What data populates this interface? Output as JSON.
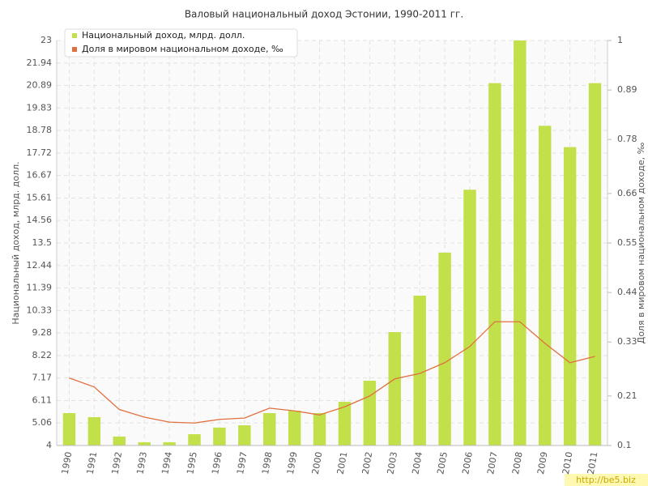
{
  "chart_data": {
    "type": "bar-line",
    "title": "Валовый национальный доход Эстонии, 1990-2011 гг.",
    "y_label": "Национальный доход, млрд. долл.",
    "y2_label": "Доля в мировом национальном доходе, ‰",
    "watermark": "http://be5.biz",
    "categories": [
      "1990",
      "1991",
      "1992",
      "1993",
      "1994",
      "1995",
      "1996",
      "1997",
      "1998",
      "1999",
      "2000",
      "2001",
      "2002",
      "2003",
      "2004",
      "2005",
      "2006",
      "2007",
      "2008",
      "2009",
      "2010",
      "2011"
    ],
    "series": [
      {
        "name": "Национальный доход, млрд. долл.",
        "type": "bar",
        "color": "#c2e04a",
        "values": [
          5.52,
          5.33,
          4.42,
          4.15,
          4.15,
          4.53,
          4.84,
          4.95,
          5.52,
          5.63,
          5.52,
          6.05,
          7.04,
          9.32,
          11.03,
          13.05,
          16.0,
          21.0,
          23,
          19.0,
          18.0,
          21.0
        ]
      },
      {
        "name": "Доля в мировом национальном доходе, ‰",
        "type": "line",
        "axis": "y2",
        "color": "#e07040",
        "values": [
          0.25,
          0.23,
          0.18,
          0.163,
          0.152,
          0.15,
          0.158,
          0.161,
          0.183,
          0.177,
          0.168,
          0.186,
          0.21,
          0.248,
          0.26,
          0.284,
          0.32,
          0.375,
          0.375,
          0.327,
          0.284,
          0.298
        ]
      }
    ],
    "ylim": [
      4,
      23
    ],
    "yticks": [
      4,
      5.06,
      6.11,
      7.17,
      8.22,
      9.28,
      10.33,
      11.39,
      12.44,
      13.5,
      14.56,
      15.61,
      16.67,
      17.72,
      18.78,
      19.83,
      20.89,
      21.94,
      23
    ],
    "y2lim": [
      0.1,
      1
    ],
    "y2ticks": [
      0.1,
      0.21,
      0.33,
      0.44,
      0.55,
      0.66,
      0.78,
      0.89,
      1
    ],
    "grid": true,
    "legend": "top-left"
  }
}
